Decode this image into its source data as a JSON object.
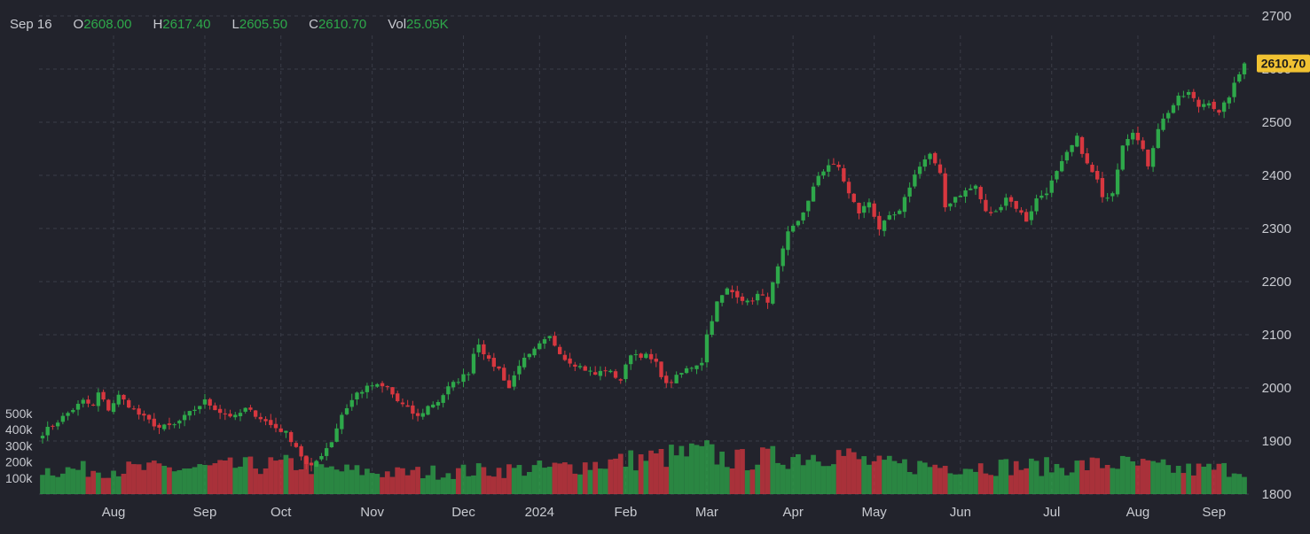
{
  "header": {
    "date": "Sep 16",
    "open_label": "O",
    "open": "2608.00",
    "high_label": "H",
    "high": "2617.40",
    "low_label": "L",
    "low": "2605.50",
    "close_label": "C",
    "close": "2610.70",
    "vol_label": "Vol",
    "vol": "25.05K"
  },
  "colors": {
    "background": "#22232c",
    "up": "#2ea84a",
    "down": "#d7373f",
    "grid": "#3a3c47",
    "text": "#c8cad0",
    "last_price_tag": "#f1c232"
  },
  "chart_data": {
    "type": "candlestick",
    "title": "",
    "price_axis": {
      "ticks": [
        "2700",
        "2600",
        "2500",
        "2400",
        "2300",
        "2200",
        "2100",
        "2000",
        "1900",
        "1800"
      ],
      "ylim": [
        1800,
        2700
      ]
    },
    "volume_axis": {
      "ticks": [
        "500k",
        "400k",
        "300k",
        "200k",
        "100k"
      ],
      "ylim": [
        0,
        600000
      ]
    },
    "x_axis": {
      "ticks": [
        "Aug",
        "Sep",
        "Oct",
        "Nov",
        "Dec",
        "2024",
        "Feb",
        "Mar",
        "Apr",
        "May",
        "Jun",
        "Jul",
        "Aug",
        "Sep"
      ]
    },
    "last_price": "2610.70",
    "grid": true,
    "close_path": [
      [
        0,
        1915
      ],
      [
        4,
        1945
      ],
      [
        8,
        1975
      ],
      [
        10,
        1965
      ],
      [
        11,
        1990
      ],
      [
        13,
        1960
      ],
      [
        15,
        1985
      ],
      [
        19,
        1950
      ],
      [
        23,
        1925
      ],
      [
        26,
        1930
      ],
      [
        30,
        1960
      ],
      [
        32,
        1975
      ],
      [
        35,
        1955
      ],
      [
        38,
        1945
      ],
      [
        40,
        1960
      ],
      [
        42,
        1950
      ],
      [
        45,
        1930
      ],
      [
        48,
        1915
      ],
      [
        50,
        1890
      ],
      [
        52,
        1855
      ],
      [
        53,
        1850
      ],
      [
        55,
        1875
      ],
      [
        57,
        1900
      ],
      [
        59,
        1950
      ],
      [
        62,
        1990
      ],
      [
        65,
        2005
      ],
      [
        68,
        2000
      ],
      [
        70,
        1975
      ],
      [
        72,
        1960
      ],
      [
        74,
        1945
      ],
      [
        76,
        1965
      ],
      [
        78,
        1975
      ],
      [
        80,
        2000
      ],
      [
        82,
        2015
      ],
      [
        84,
        2030
      ],
      [
        85,
        2065
      ],
      [
        86,
        2085
      ],
      [
        88,
        2050
      ],
      [
        90,
        2035
      ],
      [
        92,
        2000
      ],
      [
        94,
        2045
      ],
      [
        96,
        2060
      ],
      [
        98,
        2080
      ],
      [
        100,
        2095
      ],
      [
        103,
        2055
      ],
      [
        106,
        2040
      ],
      [
        109,
        2025
      ],
      [
        111,
        2035
      ],
      [
        114,
        2015
      ],
      [
        116,
        2065
      ],
      [
        119,
        2060
      ],
      [
        121,
        2045
      ],
      [
        123,
        2005
      ],
      [
        125,
        2020
      ],
      [
        127,
        2035
      ],
      [
        130,
        2050
      ],
      [
        131,
        2100
      ],
      [
        133,
        2160
      ],
      [
        135,
        2185
      ],
      [
        137,
        2175
      ],
      [
        139,
        2160
      ],
      [
        141,
        2175
      ],
      [
        143,
        2165
      ],
      [
        145,
        2225
      ],
      [
        147,
        2290
      ],
      [
        149,
        2315
      ],
      [
        151,
        2350
      ],
      [
        153,
        2400
      ],
      [
        155,
        2420
      ],
      [
        157,
        2415
      ],
      [
        159,
        2365
      ],
      [
        161,
        2330
      ],
      [
        163,
        2350
      ],
      [
        165,
        2300
      ],
      [
        167,
        2320
      ],
      [
        169,
        2330
      ],
      [
        171,
        2380
      ],
      [
        173,
        2420
      ],
      [
        175,
        2440
      ],
      [
        177,
        2400
      ],
      [
        178,
        2340
      ],
      [
        180,
        2360
      ],
      [
        182,
        2370
      ],
      [
        184,
        2380
      ],
      [
        186,
        2330
      ],
      [
        188,
        2330
      ],
      [
        190,
        2360
      ],
      [
        192,
        2340
      ],
      [
        194,
        2315
      ],
      [
        196,
        2355
      ],
      [
        198,
        2370
      ],
      [
        200,
        2405
      ],
      [
        202,
        2440
      ],
      [
        204,
        2470
      ],
      [
        206,
        2420
      ],
      [
        208,
        2390
      ],
      [
        209,
        2355
      ],
      [
        211,
        2370
      ],
      [
        213,
        2460
      ],
      [
        215,
        2485
      ],
      [
        217,
        2445
      ],
      [
        218,
        2420
      ],
      [
        220,
        2490
      ],
      [
        222,
        2520
      ],
      [
        224,
        2545
      ],
      [
        226,
        2555
      ],
      [
        228,
        2530
      ],
      [
        230,
        2540
      ],
      [
        232,
        2515
      ],
      [
        234,
        2550
      ],
      [
        236,
        2590
      ],
      [
        237,
        2611
      ]
    ],
    "volume_profile_k": [
      [
        0,
        150
      ],
      [
        30,
        160
      ],
      [
        52,
        190
      ],
      [
        54,
        155
      ],
      [
        70,
        130
      ],
      [
        100,
        160
      ],
      [
        131,
        260
      ],
      [
        133,
        235
      ],
      [
        137,
        210
      ],
      [
        150,
        240
      ],
      [
        156,
        260
      ],
      [
        165,
        180
      ],
      [
        200,
        170
      ],
      [
        212,
        190
      ],
      [
        225,
        150
      ],
      [
        237,
        160
      ]
    ],
    "candle_count": 238
  }
}
